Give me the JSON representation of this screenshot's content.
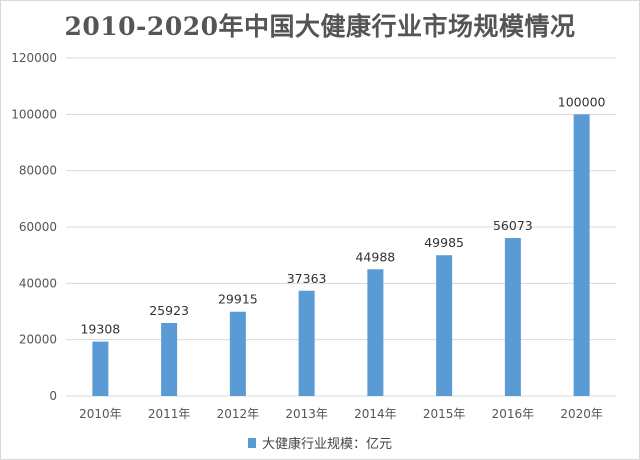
{
  "chart_data": {
    "type": "bar",
    "title": "2010-2020年中国大健康行业市场规模情况",
    "categories": [
      "2010年",
      "2011年",
      "2012年",
      "2013年",
      "2014年",
      "2015年",
      "2016年",
      "2020年"
    ],
    "series": [
      {
        "name": "大健康行业规模：亿元",
        "values": [
          19308,
          25923,
          29915,
          37363,
          44988,
          49985,
          56073,
          100000
        ],
        "color": "#5b9bd5"
      }
    ],
    "data_labels": [
      "19308",
      "25923",
      "29915",
      "37363",
      "44988",
      "49985",
      "56073",
      "100000"
    ],
    "ylim": [
      0,
      120000
    ],
    "yticks": [
      0,
      20000,
      40000,
      60000,
      80000,
      100000,
      120000
    ],
    "ytick_labels": [
      "0",
      "20000",
      "40000",
      "60000",
      "80000",
      "100000",
      "120000"
    ],
    "grid": true,
    "grid_color": "#d9d9d9",
    "legend_position": "bottom",
    "xlabel": "",
    "ylabel": ""
  }
}
